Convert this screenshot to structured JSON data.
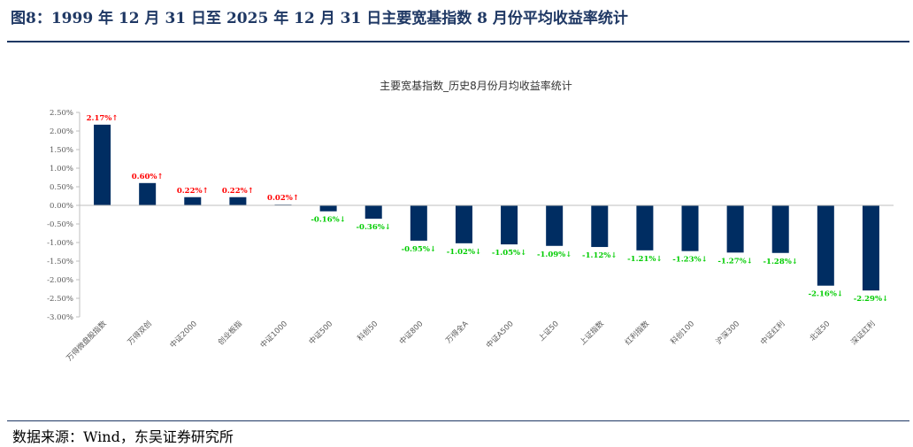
{
  "figure_title": "图8：1999 年 12 月 31 日至 2025 年 12 月 31 日主要宽基指数 8 月份平均收益率统计",
  "source": "数据来源：Wind，东吴证券研究所",
  "colors": {
    "bar": "#002d62",
    "positive_label": "#ff0000",
    "negative_label": "#00cc00",
    "axis": "#bfbfbf",
    "rule": "#1f3864"
  },
  "chart_data": {
    "type": "bar",
    "title": "主要宽基指数_历史8月份月均收益率统计",
    "xlabel": "",
    "ylabel": "",
    "ylim": [
      -3.0,
      2.5
    ],
    "y_ticks": [
      "2.50%",
      "2.00%",
      "1.50%",
      "1.00%",
      "0.50%",
      "0.00%",
      "-0.50%",
      "-1.00%",
      "-1.50%",
      "-2.00%",
      "-2.50%",
      "-3.00%"
    ],
    "y_tick_values": [
      2.5,
      2.0,
      1.5,
      1.0,
      0.5,
      0.0,
      -0.5,
      -1.0,
      -1.5,
      -2.0,
      -2.5,
      -3.0
    ],
    "grid": false,
    "categories": [
      "万得微盘股指数",
      "万得双创",
      "中证2000",
      "创业板指",
      "中证1000",
      "中证500",
      "科创50",
      "中证800",
      "万得全A",
      "中证A500",
      "上证50",
      "上证指数",
      "红利指数",
      "科创100",
      "沪深300",
      "中证红利",
      "北证50",
      "深证红利"
    ],
    "values": [
      2.17,
      0.6,
      0.22,
      0.22,
      0.02,
      -0.16,
      -0.36,
      -0.95,
      -1.02,
      -1.05,
      -1.09,
      -1.12,
      -1.21,
      -1.23,
      -1.27,
      -1.28,
      -2.16,
      -2.29
    ],
    "data_labels": [
      "2.17%↑",
      "0.60%↑",
      "0.22%↑",
      "0.22%↑",
      "0.02%↑",
      "-0.16%↓",
      "-0.36%↓",
      "-0.95%↓",
      "-1.02%↓",
      "-1.05%↓",
      "-1.09%↓",
      "-1.12%↓",
      "-1.21%↓",
      "-1.23%↓",
      "-1.27%↓",
      "-1.28%↓",
      "-2.16%↓",
      "-2.29%↓"
    ]
  }
}
